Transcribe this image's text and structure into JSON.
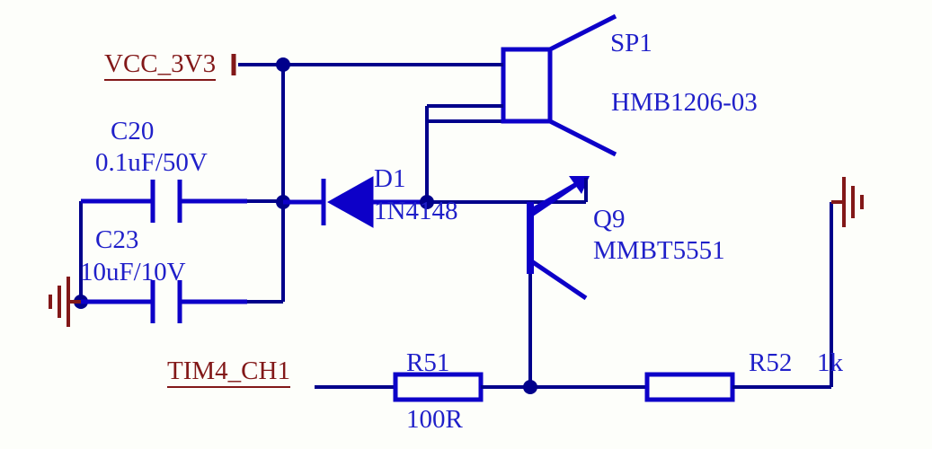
{
  "colors": {
    "wire": "#0d00c8",
    "wire_dark": "#00008b",
    "net": "#821818",
    "ground": "#821818",
    "component_text": "#1f1fc9",
    "underline": "#821818"
  },
  "stroke": {
    "wire_width": 4,
    "component_width": 5,
    "ground_width": 4
  },
  "fontsize": {
    "label": 29
  },
  "nets": {
    "vcc": "VCC_3V3",
    "tim": "TIM4_CH1"
  },
  "components": {
    "c20": {
      "ref": "C20",
      "value": "0.1uF/50V"
    },
    "c23": {
      "ref": "C23",
      "value": "10uF/10V"
    },
    "d1": {
      "ref": "D1",
      "value": "1N4148"
    },
    "q9": {
      "ref": "Q9",
      "value": "MMBT5551"
    },
    "sp1": {
      "ref": "SP1",
      "value": "HMB1206-03"
    },
    "r51": {
      "ref": "R51",
      "value": "100R"
    },
    "r52": {
      "ref": "R52",
      "value": "1k"
    }
  }
}
